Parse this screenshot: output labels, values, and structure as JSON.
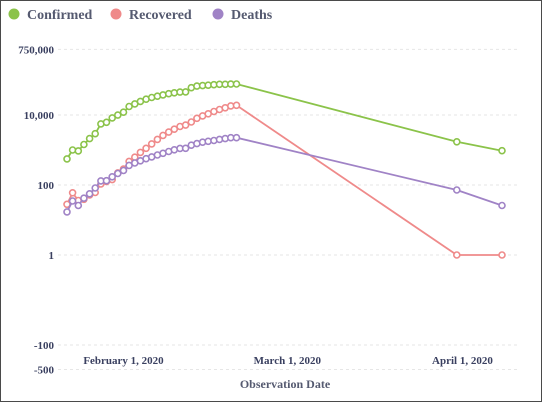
{
  "chart_data": {
    "type": "line",
    "xlabel": "Observation Date",
    "ylabel": "",
    "y_scale": "symlog",
    "x_ticks": [
      "February 1, 2020",
      "March 1, 2020",
      "April 1, 2020"
    ],
    "y_ticks": [
      "750,000",
      "10,000",
      "100",
      "1",
      "-100",
      "-500"
    ],
    "legend_position": "top-left",
    "grid": "horizontal",
    "series": [
      {
        "name": "Confirmed",
        "color": "#8bc34a",
        "points": [
          [
            "2020-01-22",
            555
          ],
          [
            "2020-01-23",
            1000
          ],
          [
            "2020-01-24",
            940
          ],
          [
            "2020-01-25",
            1440
          ],
          [
            "2020-01-26",
            2120
          ],
          [
            "2020-01-27",
            2930
          ],
          [
            "2020-01-28",
            5580
          ],
          [
            "2020-01-29",
            6170
          ],
          [
            "2020-01-30",
            8240
          ],
          [
            "2020-01-31",
            9930
          ],
          [
            "2020-02-01",
            12000
          ],
          [
            "2020-02-02",
            17500
          ],
          [
            "2020-02-03",
            20700
          ],
          [
            "2020-02-04",
            24500
          ],
          [
            "2020-02-05",
            28200
          ],
          [
            "2020-02-06",
            31600
          ],
          [
            "2020-02-07",
            34500
          ],
          [
            "2020-02-08",
            37400
          ],
          [
            "2020-02-09",
            40500
          ],
          [
            "2020-02-10",
            43100
          ],
          [
            "2020-02-11",
            45200
          ],
          [
            "2020-02-12",
            45700
          ],
          [
            "2020-02-13",
            60300
          ],
          [
            "2020-02-14",
            66900
          ],
          [
            "2020-02-15",
            69000
          ],
          [
            "2020-02-16",
            71200
          ],
          [
            "2020-02-17",
            73300
          ],
          [
            "2020-02-18",
            75200
          ],
          [
            "2020-02-19",
            75600
          ],
          [
            "2020-02-20",
            76200
          ],
          [
            "2020-02-21",
            76800
          ],
          [
            "2020-03-31",
            1720
          ],
          [
            "2020-04-08",
            955
          ]
        ]
      },
      {
        "name": "Recovered",
        "color": "#ef8a8a",
        "points": [
          [
            "2020-01-22",
            28
          ],
          [
            "2020-01-23",
            60
          ],
          [
            "2020-01-24",
            36
          ],
          [
            "2020-01-25",
            39
          ],
          [
            "2020-01-26",
            52
          ],
          [
            "2020-01-27",
            61
          ],
          [
            "2020-01-28",
            107
          ],
          [
            "2020-01-29",
            126
          ],
          [
            "2020-01-30",
            143
          ],
          [
            "2020-01-31",
            222
          ],
          [
            "2020-02-01",
            284
          ],
          [
            "2020-02-02",
            472
          ],
          [
            "2020-02-03",
            623
          ],
          [
            "2020-02-04",
            852
          ],
          [
            "2020-02-05",
            1120
          ],
          [
            "2020-02-06",
            1490
          ],
          [
            "2020-02-07",
            2010
          ],
          [
            "2020-02-08",
            2610
          ],
          [
            "2020-02-09",
            3240
          ],
          [
            "2020-02-10",
            3940
          ],
          [
            "2020-02-11",
            4680
          ],
          [
            "2020-02-12",
            5150
          ],
          [
            "2020-02-13",
            6300
          ],
          [
            "2020-02-14",
            8060
          ],
          [
            "2020-02-15",
            9400
          ],
          [
            "2020-02-16",
            10800
          ],
          [
            "2020-02-17",
            12600
          ],
          [
            "2020-02-18",
            14400
          ],
          [
            "2020-02-19",
            16100
          ],
          [
            "2020-02-20",
            18200
          ],
          [
            "2020-02-21",
            18900
          ],
          [
            "2020-03-31",
            1
          ],
          [
            "2020-04-08",
            1
          ]
        ]
      },
      {
        "name": "Deaths",
        "color": "#a083c6",
        "points": [
          [
            "2020-01-22",
            17
          ],
          [
            "2020-01-23",
            35
          ],
          [
            "2020-01-24",
            26
          ],
          [
            "2020-01-25",
            42
          ],
          [
            "2020-01-26",
            56
          ],
          [
            "2020-01-27",
            82
          ],
          [
            "2020-01-28",
            131
          ],
          [
            "2020-01-29",
            133
          ],
          [
            "2020-01-30",
            171
          ],
          [
            "2020-01-31",
            213
          ],
          [
            "2020-02-01",
            259
          ],
          [
            "2020-02-02",
            362
          ],
          [
            "2020-02-03",
            426
          ],
          [
            "2020-02-04",
            492
          ],
          [
            "2020-02-05",
            564
          ],
          [
            "2020-02-06",
            634
          ],
          [
            "2020-02-07",
            719
          ],
          [
            "2020-02-08",
            806
          ],
          [
            "2020-02-09",
            906
          ],
          [
            "2020-02-10",
            1010
          ],
          [
            "2020-02-11",
            1110
          ],
          [
            "2020-02-12",
            1120
          ],
          [
            "2020-02-13",
            1370
          ],
          [
            "2020-02-14",
            1520
          ],
          [
            "2020-02-15",
            1670
          ],
          [
            "2020-02-16",
            1770
          ],
          [
            "2020-02-17",
            1870
          ],
          [
            "2020-02-18",
            2010
          ],
          [
            "2020-02-19",
            2120
          ],
          [
            "2020-02-20",
            2240
          ],
          [
            "2020-02-21",
            2250
          ],
          [
            "2020-03-31",
            72
          ],
          [
            "2020-04-08",
            26
          ]
        ]
      }
    ]
  }
}
